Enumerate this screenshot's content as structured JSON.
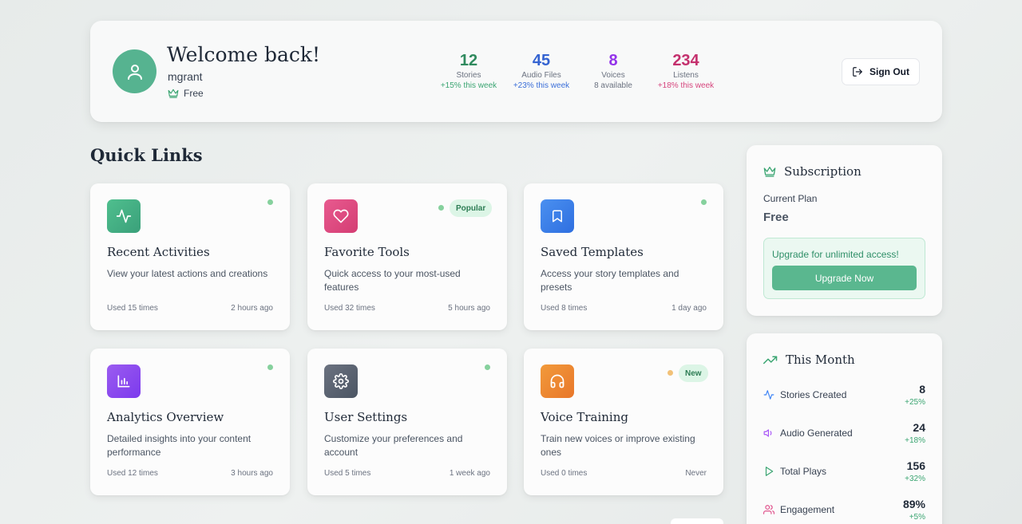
{
  "header": {
    "welcome": "Welcome back!",
    "username": "mgrant",
    "plan": "Free",
    "sign_out": "Sign Out",
    "stats": [
      {
        "value": "12",
        "label": "Stories",
        "change": "+15% this week",
        "color": "#2f8a5e"
      },
      {
        "value": "45",
        "label": "Audio Files",
        "change": "+23% this week",
        "color": "#3463d1"
      },
      {
        "value": "8",
        "label": "Voices",
        "change": "8 available",
        "color": "#9333ea"
      },
      {
        "value": "234",
        "label": "Listens",
        "change": "+18% this week",
        "color": "#c4306d"
      }
    ]
  },
  "quick_links": {
    "title": "Quick Links",
    "cards": [
      {
        "title": "Recent Activities",
        "desc": "View your latest actions and creations",
        "used": "Used 15 times",
        "time": "2 hours ago",
        "icon": "activity-icon",
        "badge": ""
      },
      {
        "title": "Favorite Tools",
        "desc": "Quick access to your most-used features",
        "used": "Used 32 times",
        "time": "5 hours ago",
        "icon": "heart-icon",
        "badge": "Popular"
      },
      {
        "title": "Saved Templates",
        "desc": "Access your story templates and presets",
        "used": "Used 8 times",
        "time": "1 day ago",
        "icon": "bookmark-icon",
        "badge": ""
      },
      {
        "title": "Analytics Overview",
        "desc": "Detailed insights into your content performance",
        "used": "Used 12 times",
        "time": "3 hours ago",
        "icon": "bar-chart-icon",
        "badge": ""
      },
      {
        "title": "User Settings",
        "desc": "Customize your preferences and account",
        "used": "Used 5 times",
        "time": "1 week ago",
        "icon": "gear-icon",
        "badge": ""
      },
      {
        "title": "Voice Training",
        "desc": "Train new voices or improve existing ones",
        "used": "Used 0 times",
        "time": "Never",
        "icon": "headphones-icon",
        "badge": "New"
      }
    ]
  },
  "subscription": {
    "title": "Subscription",
    "current_plan_label": "Current Plan",
    "current_plan": "Free",
    "upgrade_text": "Upgrade for unlimited access!",
    "upgrade_button": "Upgrade Now"
  },
  "this_month": {
    "title": "This Month",
    "rows": [
      {
        "label": "Stories Created",
        "value": "8",
        "change": "+25%",
        "icon": "activity-icon"
      },
      {
        "label": "Audio Generated",
        "value": "24",
        "change": "+18%",
        "icon": "speaker-icon"
      },
      {
        "label": "Total Plays",
        "value": "156",
        "change": "+32%",
        "icon": "play-icon"
      },
      {
        "label": "Engagement",
        "value": "89%",
        "change": "+5%",
        "icon": "users-icon"
      }
    ]
  }
}
